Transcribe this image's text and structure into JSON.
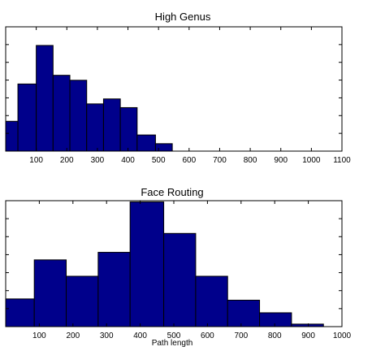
{
  "chart_data": [
    {
      "type": "bar",
      "title": "High Genus",
      "xlabel": "",
      "ylabel": "",
      "xlim": [
        0,
        1100
      ],
      "ylim": [
        0,
        100
      ],
      "xticks": [
        100,
        200,
        300,
        400,
        500,
        600,
        700,
        800,
        900,
        1000,
        1100
      ],
      "ytick_count": 7,
      "bar_color": "#00008b",
      "bins": [
        {
          "x0": 0,
          "x1": 40,
          "value": 24
        },
        {
          "x0": 40,
          "x1": 100,
          "value": 54
        },
        {
          "x0": 100,
          "x1": 155,
          "value": 85
        },
        {
          "x0": 155,
          "x1": 210,
          "value": 61
        },
        {
          "x0": 210,
          "x1": 265,
          "value": 57
        },
        {
          "x0": 265,
          "x1": 320,
          "value": 38
        },
        {
          "x0": 320,
          "x1": 375,
          "value": 42
        },
        {
          "x0": 375,
          "x1": 430,
          "value": 35
        },
        {
          "x0": 430,
          "x1": 490,
          "value": 13
        },
        {
          "x0": 490,
          "x1": 545,
          "value": 6
        }
      ]
    },
    {
      "type": "bar",
      "title": "Face Routing",
      "xlabel": "Path length",
      "ylabel": "",
      "xlim": [
        0,
        1000
      ],
      "ylim": [
        0,
        100
      ],
      "xticks": [
        100,
        200,
        300,
        400,
        500,
        600,
        700,
        800,
        900,
        1000
      ],
      "ytick_count": 7,
      "bar_color": "#00008b",
      "bins": [
        {
          "x0": 0,
          "x1": 85,
          "value": 22
        },
        {
          "x0": 85,
          "x1": 180,
          "value": 53
        },
        {
          "x0": 180,
          "x1": 275,
          "value": 40
        },
        {
          "x0": 275,
          "x1": 370,
          "value": 59
        },
        {
          "x0": 370,
          "x1": 470,
          "value": 99
        },
        {
          "x0": 470,
          "x1": 565,
          "value": 74
        },
        {
          "x0": 565,
          "x1": 660,
          "value": 40
        },
        {
          "x0": 660,
          "x1": 755,
          "value": 21
        },
        {
          "x0": 755,
          "x1": 850,
          "value": 11
        },
        {
          "x0": 850,
          "x1": 945,
          "value": 2
        }
      ]
    }
  ]
}
